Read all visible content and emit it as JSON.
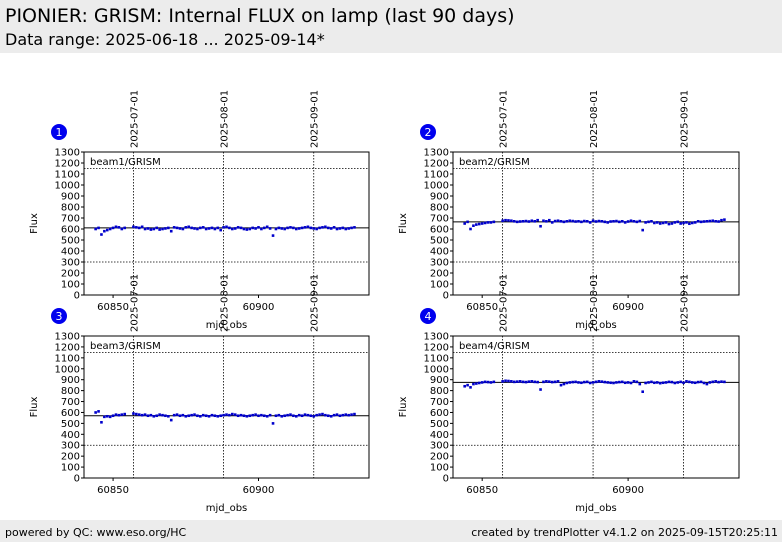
{
  "header": {
    "title": "PIONIER: GRISM: Internal FLUX on lamp (last 90 days)",
    "subtitle": "Data range: 2025-06-18 ... 2025-09-14*"
  },
  "footer": {
    "left": "powered by QC: www.eso.org/HC",
    "right": "created by trendPlotter v4.1.2 on 2025-09-15T20:25:11"
  },
  "colors": {
    "points": "#0000cc",
    "badge": "#0000ee",
    "header_bg": "#ececec"
  },
  "chart_data": [
    {
      "type": "scatter",
      "badge": "1",
      "label": "beam1/GRISM",
      "xlabel": "mjd_obs",
      "ylabel": "Flux",
      "xlim": [
        60840,
        60938
      ],
      "ylim": [
        0,
        1300
      ],
      "xticks": [
        60850,
        60900
      ],
      "yticks": [
        0,
        100,
        200,
        300,
        400,
        500,
        600,
        700,
        800,
        900,
        1000,
        1100,
        1200,
        1300
      ],
      "date_lines": [
        {
          "x": 60857,
          "label": "2025-07-01"
        },
        {
          "x": 60888,
          "label": "2025-08-01"
        },
        {
          "x": 60919,
          "label": "2025-09-01"
        }
      ],
      "ref_line": 610,
      "limits": [
        300,
        1150
      ],
      "series": [
        {
          "x": [
            60844,
            60845,
            60846,
            60847,
            60848,
            60849,
            60850,
            60851,
            60852,
            60853,
            60854,
            60857,
            60858,
            60859,
            60860,
            60861,
            60862,
            60863,
            60864,
            60865,
            60866,
            60867,
            60868,
            60869,
            60870,
            60871,
            60872,
            60873,
            60874,
            60875,
            60876,
            60877,
            60878,
            60879,
            60880,
            60881,
            60882,
            60883,
            60884,
            60885,
            60886,
            60887,
            60888,
            60889,
            60890,
            60891,
            60892,
            60893,
            60894,
            60895,
            60896,
            60897,
            60898,
            60899,
            60900,
            60901,
            60902,
            60903,
            60904,
            60905,
            60906,
            60907,
            60908,
            60909,
            60910,
            60911,
            60912,
            60913,
            60914,
            60915,
            60916,
            60917,
            60918,
            60919,
            60920,
            60921,
            60922,
            60923,
            60924,
            60925,
            60926,
            60927,
            60928,
            60929,
            60930,
            60931,
            60932,
            60933
          ],
          "y": [
            600,
            610,
            550,
            580,
            590,
            600,
            610,
            620,
            615,
            600,
            610,
            620,
            615,
            610,
            620,
            600,
            605,
            595,
            600,
            610,
            595,
            600,
            605,
            610,
            580,
            615,
            610,
            605,
            600,
            615,
            620,
            610,
            605,
            600,
            610,
            615,
            600,
            605,
            610,
            600,
            610,
            590,
            615,
            620,
            610,
            600,
            605,
            615,
            610,
            600,
            595,
            600,
            610,
            605,
            615,
            600,
            610,
            620,
            605,
            540,
            600,
            610,
            605,
            600,
            610,
            615,
            610,
            600,
            605,
            610,
            615,
            620,
            610,
            605,
            600,
            610,
            615,
            620,
            610,
            605,
            615,
            600,
            605,
            610,
            600,
            605,
            610,
            615
          ]
        }
      ]
    },
    {
      "type": "scatter",
      "badge": "2",
      "label": "beam2/GRISM",
      "xlabel": "mjd_obs",
      "ylabel": "Flux",
      "xlim": [
        60840,
        60938
      ],
      "ylim": [
        0,
        1300
      ],
      "xticks": [
        60850,
        60900
      ],
      "yticks": [
        0,
        100,
        200,
        300,
        400,
        500,
        600,
        700,
        800,
        900,
        1000,
        1100,
        1200,
        1300
      ],
      "date_lines": [
        {
          "x": 60857,
          "label": "2025-07-01"
        },
        {
          "x": 60888,
          "label": "2025-08-01"
        },
        {
          "x": 60919,
          "label": "2025-09-01"
        }
      ],
      "ref_line": 665,
      "limits": [
        300,
        1150
      ],
      "series": [
        {
          "x": [
            60844,
            60845,
            60846,
            60847,
            60848,
            60849,
            60850,
            60851,
            60852,
            60853,
            60854,
            60857,
            60858,
            60859,
            60860,
            60861,
            60862,
            60863,
            60864,
            60865,
            60866,
            60867,
            60868,
            60869,
            60870,
            60871,
            60872,
            60873,
            60874,
            60875,
            60876,
            60877,
            60878,
            60879,
            60880,
            60881,
            60882,
            60883,
            60884,
            60885,
            60886,
            60887,
            60888,
            60889,
            60890,
            60891,
            60892,
            60893,
            60894,
            60895,
            60896,
            60897,
            60898,
            60899,
            60900,
            60901,
            60902,
            60903,
            60904,
            60905,
            60906,
            60907,
            60908,
            60909,
            60910,
            60911,
            60912,
            60913,
            60914,
            60915,
            60916,
            60917,
            60918,
            60919,
            60920,
            60921,
            60922,
            60923,
            60924,
            60925,
            60926,
            60927,
            60928,
            60929,
            60930,
            60931,
            60932,
            60933
          ],
          "y": [
            650,
            665,
            600,
            630,
            640,
            645,
            650,
            655,
            660,
            660,
            665,
            675,
            680,
            678,
            675,
            670,
            665,
            668,
            670,
            672,
            668,
            675,
            670,
            680,
            625,
            675,
            670,
            680,
            660,
            672,
            675,
            670,
            665,
            670,
            675,
            672,
            668,
            670,
            665,
            672,
            670,
            660,
            675,
            668,
            672,
            670,
            665,
            660,
            668,
            670,
            672,
            665,
            670,
            660,
            668,
            675,
            670,
            665,
            672,
            590,
            660,
            665,
            670,
            655,
            660,
            650,
            655,
            660,
            645,
            650,
            660,
            665,
            650,
            655,
            660,
            648,
            655,
            660,
            670,
            665,
            668,
            670,
            672,
            675,
            670,
            668,
            680,
            685
          ]
        }
      ]
    },
    {
      "type": "scatter",
      "badge": "3",
      "label": "beam3/GRISM",
      "xlabel": "mjd_obs",
      "ylabel": "Flux",
      "xlim": [
        60840,
        60938
      ],
      "ylim": [
        0,
        1300
      ],
      "xticks": [
        60850,
        60900
      ],
      "yticks": [
        0,
        100,
        200,
        300,
        400,
        500,
        600,
        700,
        800,
        900,
        1000,
        1100,
        1200,
        1300
      ],
      "date_lines": [
        {
          "x": 60857,
          "label": "2025-07-01"
        },
        {
          "x": 60888,
          "label": "2025-08-01"
        },
        {
          "x": 60919,
          "label": "2025-09-01"
        }
      ],
      "ref_line": 570,
      "limits": [
        300,
        1150
      ],
      "series": [
        {
          "x": [
            60844,
            60845,
            60846,
            60847,
            60848,
            60849,
            60850,
            60851,
            60852,
            60853,
            60854,
            60857,
            60858,
            60859,
            60860,
            60861,
            60862,
            60863,
            60864,
            60865,
            60866,
            60867,
            60868,
            60869,
            60870,
            60871,
            60872,
            60873,
            60874,
            60875,
            60876,
            60877,
            60878,
            60879,
            60880,
            60881,
            60882,
            60883,
            60884,
            60885,
            60886,
            60887,
            60888,
            60889,
            60890,
            60891,
            60892,
            60893,
            60894,
            60895,
            60896,
            60897,
            60898,
            60899,
            60900,
            60901,
            60902,
            60903,
            60904,
            60905,
            60906,
            60907,
            60908,
            60909,
            60910,
            60911,
            60912,
            60913,
            60914,
            60915,
            60916,
            60917,
            60918,
            60919,
            60920,
            60921,
            60922,
            60923,
            60924,
            60925,
            60926,
            60927,
            60928,
            60929,
            60930,
            60931,
            60932,
            60933
          ],
          "y": [
            600,
            610,
            510,
            560,
            565,
            560,
            570,
            580,
            575,
            580,
            585,
            590,
            585,
            580,
            575,
            580,
            570,
            575,
            565,
            570,
            580,
            575,
            570,
            565,
            530,
            575,
            580,
            570,
            575,
            565,
            570,
            575,
            580,
            570,
            565,
            575,
            570,
            565,
            575,
            570,
            565,
            570,
            575,
            580,
            575,
            585,
            580,
            570,
            575,
            570,
            565,
            570,
            575,
            580,
            570,
            575,
            570,
            565,
            575,
            500,
            570,
            575,
            565,
            570,
            575,
            580,
            570,
            565,
            575,
            570,
            580,
            575,
            570,
            565,
            575,
            580,
            585,
            575,
            570,
            565,
            575,
            580,
            570,
            575,
            580,
            575,
            580,
            585
          ]
        }
      ]
    },
    {
      "type": "scatter",
      "badge": "4",
      "label": "beam4/GRISM",
      "xlabel": "mjd_obs",
      "ylabel": "Flux",
      "xlim": [
        60840,
        60938
      ],
      "ylim": [
        0,
        1300
      ],
      "xticks": [
        60850,
        60900
      ],
      "yticks": [
        0,
        100,
        200,
        300,
        400,
        500,
        600,
        700,
        800,
        900,
        1000,
        1100,
        1200,
        1300
      ],
      "date_lines": [
        {
          "x": 60857,
          "label": "2025-07-01"
        },
        {
          "x": 60888,
          "label": "2025-08-01"
        },
        {
          "x": 60919,
          "label": "2025-09-01"
        }
      ],
      "ref_line": 875,
      "limits": [
        300,
        1150
      ],
      "series": [
        {
          "x": [
            60844,
            60845,
            60846,
            60847,
            60848,
            60849,
            60850,
            60851,
            60852,
            60853,
            60854,
            60857,
            60858,
            60859,
            60860,
            60861,
            60862,
            60863,
            60864,
            60865,
            60866,
            60867,
            60868,
            60869,
            60870,
            60871,
            60872,
            60873,
            60874,
            60875,
            60876,
            60877,
            60878,
            60879,
            60880,
            60881,
            60882,
            60883,
            60884,
            60885,
            60886,
            60887,
            60888,
            60889,
            60890,
            60891,
            60892,
            60893,
            60894,
            60895,
            60896,
            60897,
            60898,
            60899,
            60900,
            60901,
            60902,
            60903,
            60904,
            60905,
            60906,
            60907,
            60908,
            60909,
            60910,
            60911,
            60912,
            60913,
            60914,
            60915,
            60916,
            60917,
            60918,
            60919,
            60920,
            60921,
            60922,
            60923,
            60924,
            60925,
            60926,
            60927,
            60928,
            60929,
            60930,
            60931,
            60932,
            60933
          ],
          "y": [
            840,
            850,
            830,
            860,
            865,
            870,
            875,
            880,
            878,
            875,
            880,
            885,
            890,
            888,
            885,
            880,
            882,
            885,
            880,
            878,
            882,
            885,
            880,
            878,
            810,
            880,
            885,
            882,
            878,
            880,
            885,
            850,
            860,
            870,
            875,
            878,
            880,
            875,
            872,
            878,
            880,
            870,
            875,
            880,
            885,
            882,
            878,
            875,
            872,
            870,
            875,
            878,
            880,
            872,
            875,
            870,
            885,
            880,
            860,
            790,
            870,
            875,
            880,
            872,
            875,
            868,
            872,
            875,
            880,
            878,
            870,
            875,
            880,
            872,
            885,
            880,
            875,
            872,
            878,
            880,
            870,
            860,
            875,
            880,
            885,
            878,
            882,
            880
          ]
        }
      ]
    }
  ]
}
